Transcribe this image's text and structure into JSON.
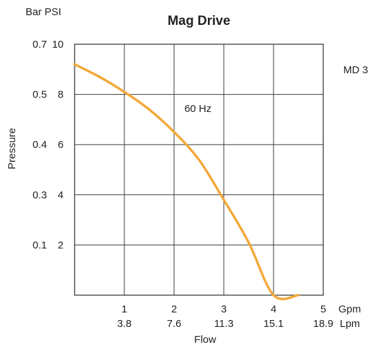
{
  "chart_data": {
    "type": "line",
    "title": "Mag Drive",
    "side_label": "MD 3",
    "units_left": "Bar PSI",
    "xlabel": "Flow",
    "ylabel": "Pressure",
    "x_unit_gpm": "Gpm",
    "x_unit_lpm": "Lpm",
    "x_range_gpm": [
      0,
      5
    ],
    "y_range_psi": [
      0,
      10
    ],
    "grid": true,
    "x_ticks": [
      {
        "gpm": "1",
        "lpm": "3.8"
      },
      {
        "gpm": "2",
        "lpm": "7.6"
      },
      {
        "gpm": "3",
        "lpm": "11.3"
      },
      {
        "gpm": "4",
        "lpm": "15.1"
      },
      {
        "gpm": "5",
        "lpm": "18.9"
      }
    ],
    "y_ticks": [
      {
        "psi": "2",
        "bar": "0.1"
      },
      {
        "psi": "4",
        "bar": "0.3"
      },
      {
        "psi": "6",
        "bar": "0.4"
      },
      {
        "psi": "8",
        "bar": "0.5"
      },
      {
        "psi": "10",
        "bar": "0.7"
      }
    ],
    "series": [
      {
        "name": "60 Hz",
        "color": "#f2a93b",
        "x": [
          0,
          0.5,
          1.0,
          1.5,
          2.0,
          2.5,
          3.0,
          3.5,
          4.0,
          4.5
        ],
        "y": [
          9.2,
          8.7,
          8.1,
          7.4,
          6.5,
          5.4,
          3.8,
          2.1,
          0.0,
          0.0
        ]
      }
    ]
  }
}
